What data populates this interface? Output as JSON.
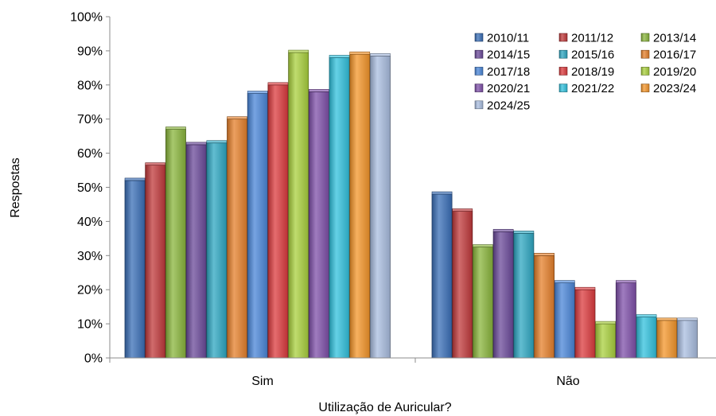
{
  "chart_data": {
    "type": "bar",
    "title": "",
    "xlabel": "Utilização de Auricular?",
    "ylabel": "Respostas",
    "categories": [
      "Sim",
      "Não"
    ],
    "ylim": [
      0,
      100
    ],
    "yticks": [
      0,
      10,
      20,
      30,
      40,
      50,
      60,
      70,
      80,
      90,
      100
    ],
    "ytick_suffix": "%",
    "grid": false,
    "legend_position": "top-right",
    "series": [
      {
        "name": "2010/11",
        "color": "#3a6fb7",
        "values": [
          52,
          48
        ]
      },
      {
        "name": "2011/12",
        "color": "#c0393b",
        "values": [
          56.5,
          43
        ]
      },
      {
        "name": "2013/14",
        "color": "#8ab53c",
        "values": [
          67,
          32.5
        ]
      },
      {
        "name": "2014/15",
        "color": "#6b4a9a",
        "values": [
          62.5,
          37
        ]
      },
      {
        "name": "2015/16",
        "color": "#2ea7c2",
        "values": [
          63,
          36.5
        ]
      },
      {
        "name": "2016/17",
        "color": "#e5802b",
        "values": [
          70,
          30
        ]
      },
      {
        "name": "2017/18",
        "color": "#4a86d8",
        "values": [
          77.5,
          22
        ]
      },
      {
        "name": "2018/19",
        "color": "#dc3b3e",
        "values": [
          80,
          20
        ]
      },
      {
        "name": "2019/20",
        "color": "#a9d03d",
        "values": [
          89.5,
          10
        ]
      },
      {
        "name": "2020/21",
        "color": "#7f50a9",
        "values": [
          78,
          22
        ]
      },
      {
        "name": "2021/22",
        "color": "#31c1dd",
        "values": [
          88,
          12
        ]
      },
      {
        "name": "2023/24",
        "color": "#f4952a",
        "values": [
          89,
          11
        ]
      },
      {
        "name": "2024/25",
        "color": "#a9bde0",
        "values": [
          88.5,
          11
        ]
      }
    ]
  }
}
